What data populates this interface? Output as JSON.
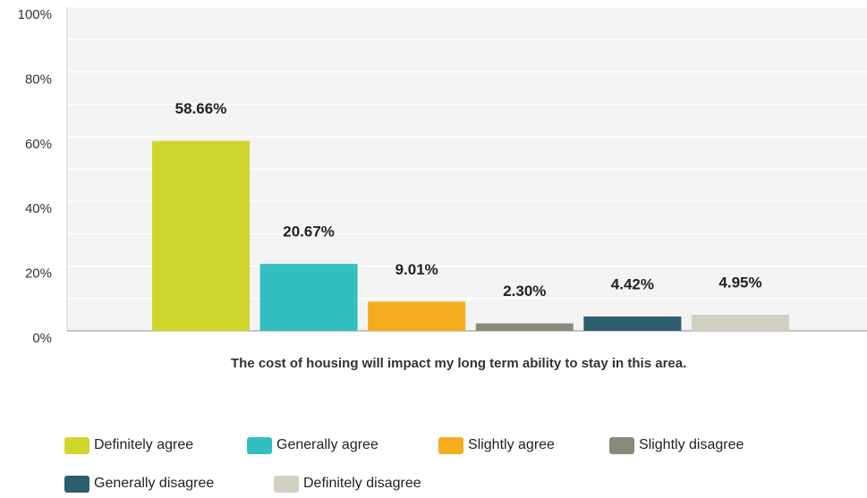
{
  "chart_data": {
    "type": "bar",
    "categories": [
      "The cost of housing will impact my long term ability to stay in this area."
    ],
    "series": [
      {
        "name": "Definitely agree",
        "color": "#cfd62b",
        "values": [
          58.66
        ],
        "value_labels": [
          "58.66%"
        ]
      },
      {
        "name": "Generally agree",
        "color": "#33bec0",
        "values": [
          20.67
        ],
        "value_labels": [
          "20.67%"
        ]
      },
      {
        "name": "Slightly agree",
        "color": "#f5ad1f",
        "values": [
          9.01
        ],
        "value_labels": [
          "9.01%"
        ]
      },
      {
        "name": "Slightly disagree",
        "color": "#8a8a7b",
        "values": [
          2.3
        ],
        "value_labels": [
          "2.30%"
        ]
      },
      {
        "name": "Generally disagree",
        "color": "#2d5e6d",
        "values": [
          4.42
        ],
        "value_labels": [
          "4.42%"
        ]
      },
      {
        "name": "Definitely disagree",
        "color": "#d1cfbf",
        "values": [
          4.95
        ],
        "value_labels": [
          "4.95%"
        ]
      }
    ],
    "ylim": [
      0,
      100
    ],
    "yticks": [
      {
        "value": 0,
        "label": "0%"
      },
      {
        "value": 20,
        "label": "20%"
      },
      {
        "value": 40,
        "label": "40%"
      },
      {
        "value": 60,
        "label": "60%"
      },
      {
        "value": 80,
        "label": "80%"
      },
      {
        "value": 100,
        "label": "100%"
      }
    ],
    "yminor": [
      10,
      30,
      50,
      70,
      90
    ],
    "grid": true,
    "legend": "bottom"
  }
}
